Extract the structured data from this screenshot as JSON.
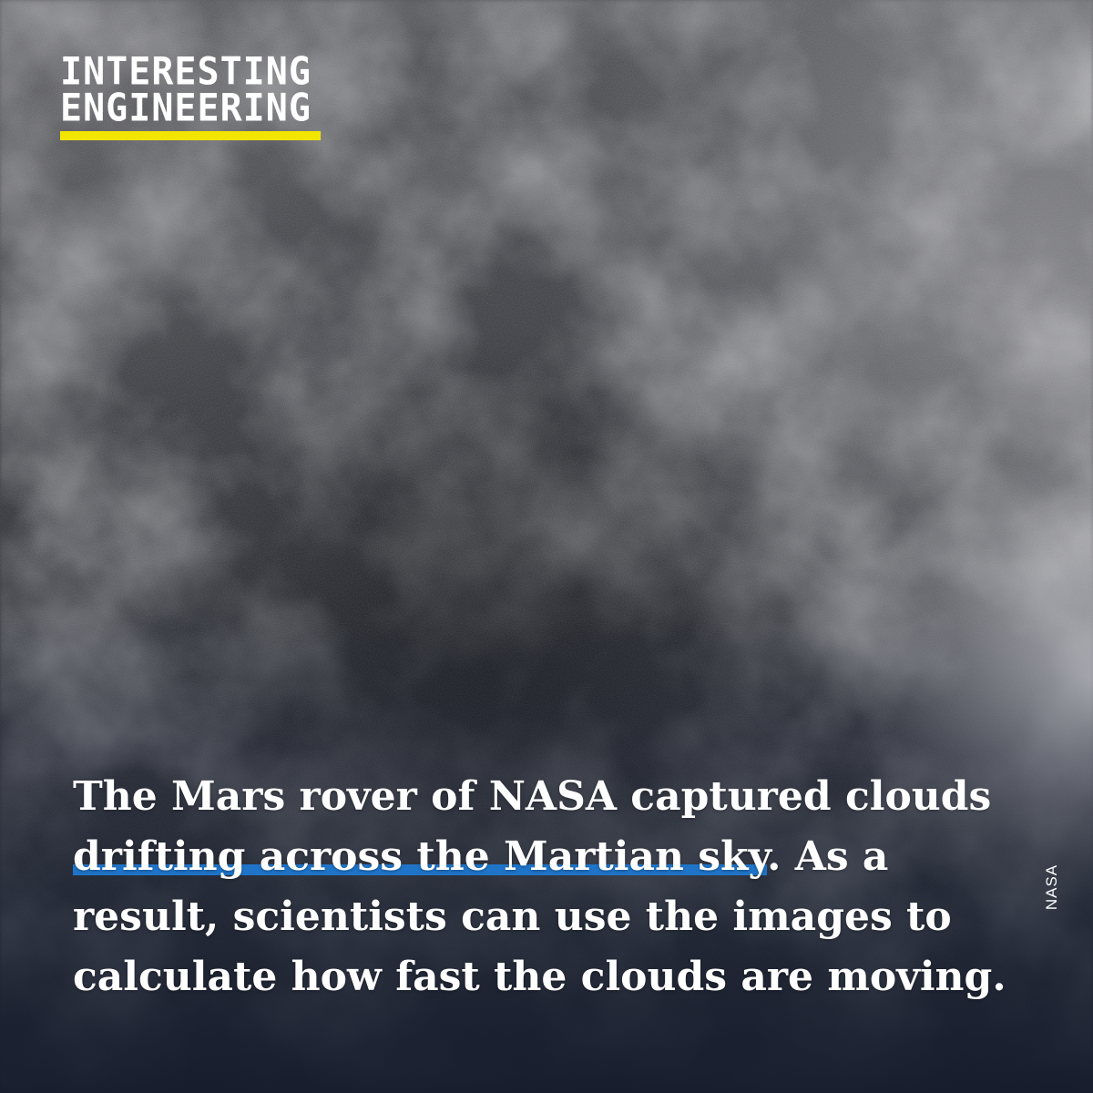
{
  "brand": {
    "line1": "INTERESTING",
    "line2": "ENGINEERING",
    "underline_color": "#f2e500"
  },
  "caption": {
    "before": "The Mars rover of NASA captured clouds ",
    "highlight": "drifting across the Martian sky",
    "after": ". As a result, scientists can use the images to calculate how fast the clouds are moving.",
    "highlight_color": "#1f74c8"
  },
  "photo_credit": "NASA",
  "colors": {
    "sky_dark": "#1b2233",
    "cloud_light": "#d8d8dc"
  }
}
